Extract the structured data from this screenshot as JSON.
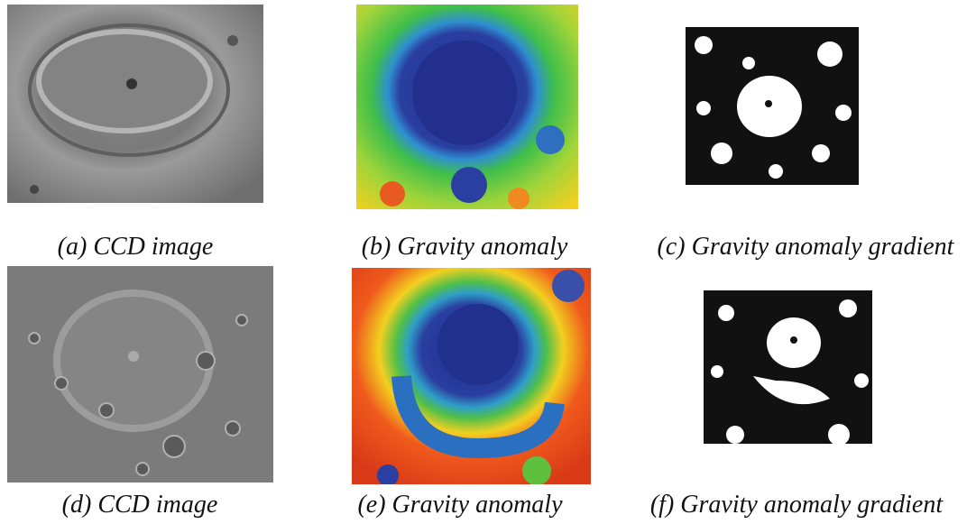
{
  "figure": {
    "panels": [
      {
        "caption": "(a) CCD image"
      },
      {
        "caption": "(b) Gravity anomaly"
      },
      {
        "caption": "(c) Gravity anomaly gradient"
      },
      {
        "caption": "(d) CCD image"
      },
      {
        "caption": "(e) Gravity anomaly"
      },
      {
        "caption": "(f) Gravity anomaly gradient"
      }
    ]
  }
}
